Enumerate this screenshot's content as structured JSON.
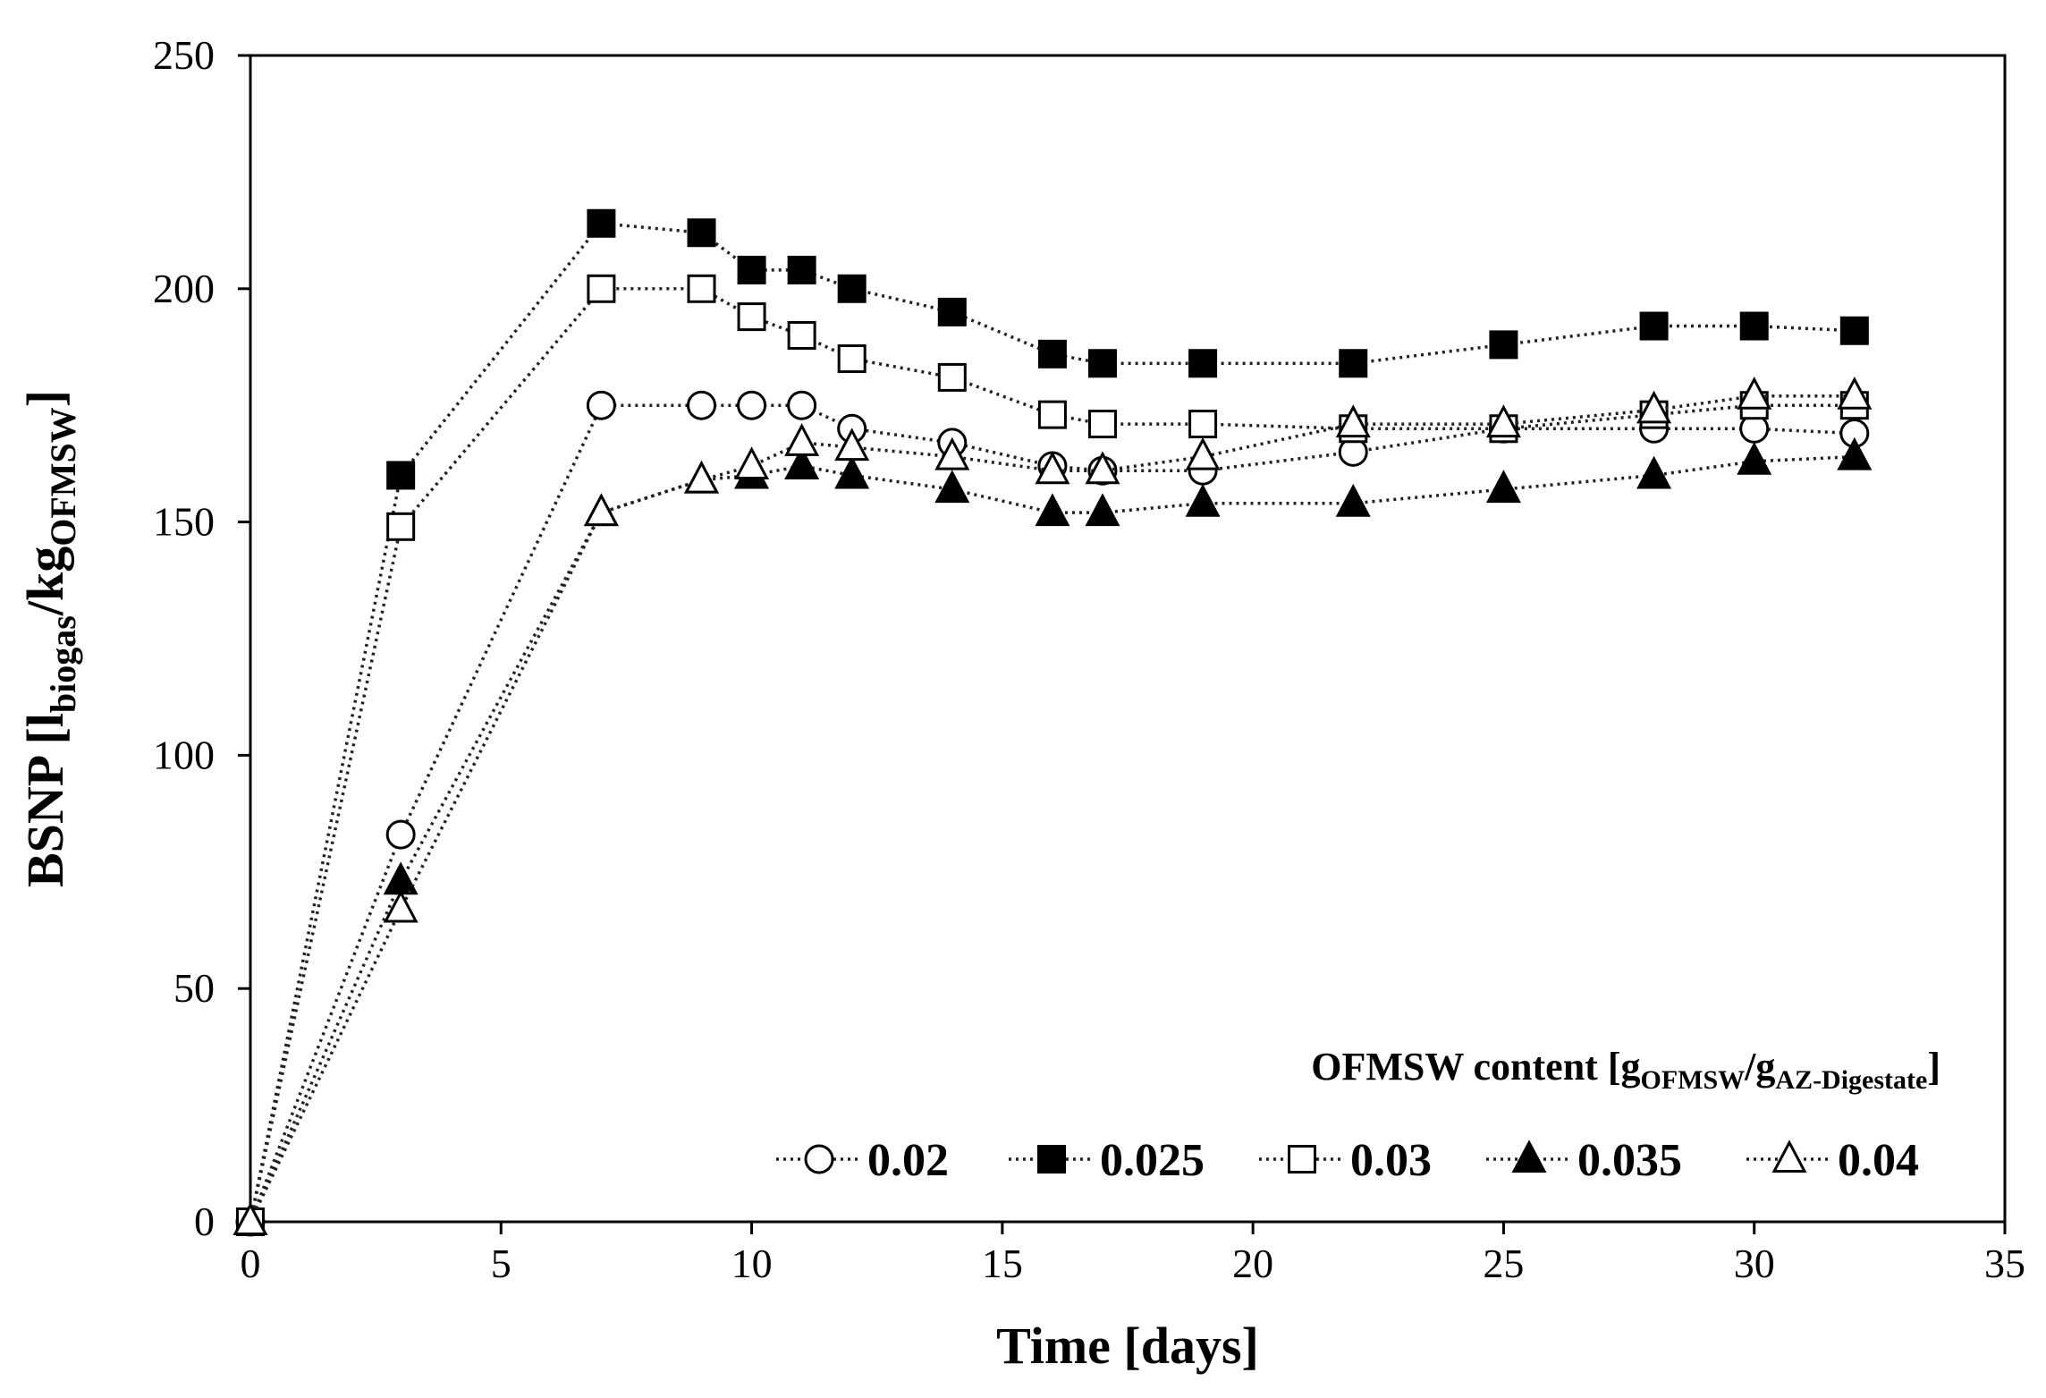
{
  "chart_data": {
    "type": "line",
    "title": "",
    "xlabel": "Time [days]",
    "ylabel": {
      "main": "BSNP [l",
      "sub1": "biogas",
      "mid": "/kg",
      "sub2": "OFMSW",
      "end": "]"
    },
    "xlim": [
      0,
      35
    ],
    "ylim": [
      0,
      250
    ],
    "xticks": [
      0,
      5,
      10,
      15,
      20,
      25,
      30,
      35
    ],
    "yticks": [
      0,
      50,
      100,
      150,
      200,
      250
    ],
    "grid": false,
    "legend_position": "bottom-right",
    "legend_title": {
      "main": "OFMSW content [g",
      "sub1": "OFMSW",
      "mid": "/g",
      "sub2": "AZ-Digestate",
      "end": "]"
    },
    "series": [
      {
        "name": "0.02",
        "marker": "circle",
        "filled": false,
        "x": [
          0,
          3,
          7,
          9,
          10,
          11,
          12,
          14,
          16,
          17,
          19,
          22,
          25,
          28,
          30,
          32
        ],
        "values": [
          0,
          83,
          175,
          175,
          175,
          175,
          170,
          167,
          162,
          161,
          161,
          165,
          170,
          170,
          170,
          169
        ]
      },
      {
        "name": "0.025",
        "marker": "square",
        "filled": true,
        "x": [
          0,
          3,
          7,
          9,
          10,
          11,
          12,
          14,
          16,
          17,
          19,
          22,
          25,
          28,
          30,
          32
        ],
        "values": [
          0,
          160,
          214,
          212,
          204,
          204,
          200,
          195,
          186,
          184,
          184,
          184,
          188,
          192,
          192,
          191
        ]
      },
      {
        "name": "0.03",
        "marker": "square",
        "filled": false,
        "x": [
          0,
          3,
          7,
          9,
          10,
          11,
          12,
          14,
          16,
          17,
          19,
          22,
          25,
          28,
          30,
          32
        ],
        "values": [
          0,
          149,
          200,
          200,
          194,
          190,
          185,
          181,
          173,
          171,
          171,
          170,
          170,
          173,
          175,
          175
        ]
      },
      {
        "name": "0.035",
        "marker": "triangle",
        "filled": true,
        "x": [
          0,
          3,
          7,
          9,
          10,
          11,
          12,
          14,
          16,
          17,
          19,
          22,
          25,
          28,
          30,
          32
        ],
        "values": [
          0,
          73,
          152,
          159,
          160,
          162,
          160,
          157,
          152,
          152,
          154,
          154,
          157,
          160,
          163,
          164
        ]
      },
      {
        "name": "0.04",
        "marker": "triangle",
        "filled": false,
        "x": [
          0,
          3,
          7,
          9,
          10,
          11,
          12,
          14,
          16,
          17,
          19,
          22,
          25,
          28,
          30,
          32
        ],
        "values": [
          0,
          67,
          152,
          159,
          162,
          167,
          166,
          164,
          161,
          161,
          164,
          171,
          171,
          174,
          177,
          177
        ]
      }
    ]
  }
}
